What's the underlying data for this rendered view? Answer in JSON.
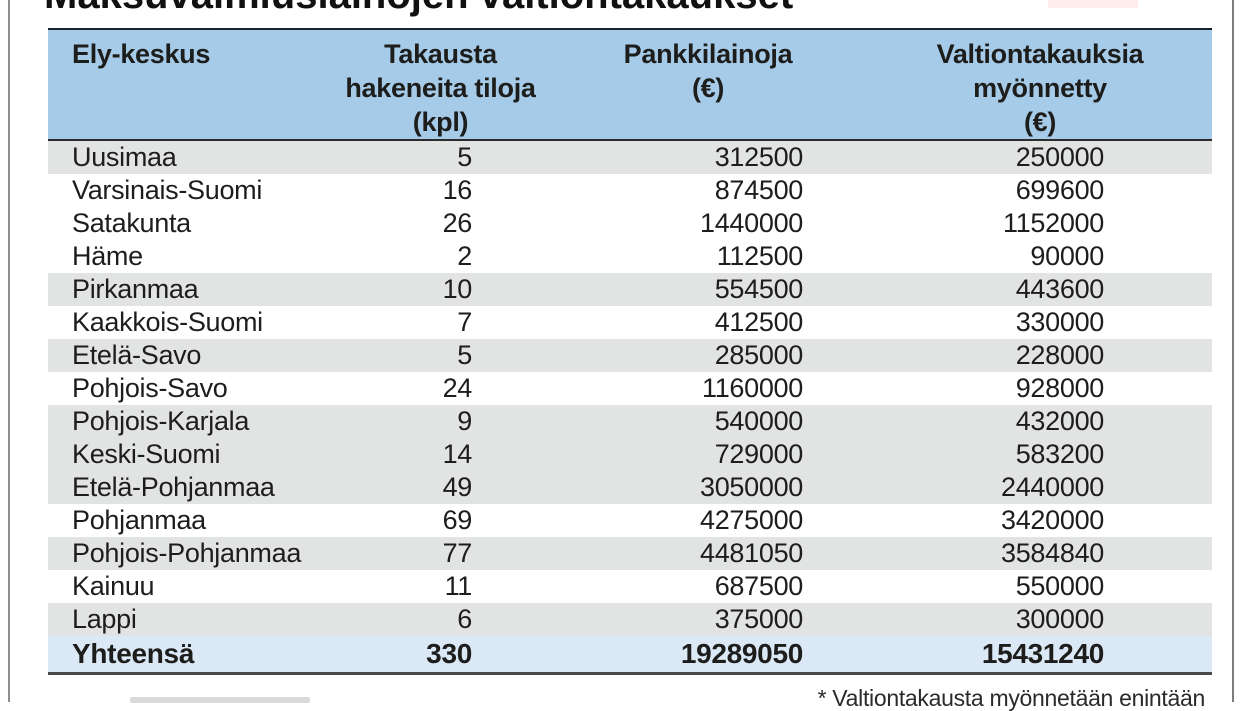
{
  "title": "Maksuvalmiuslainojen valtiontakaukset",
  "footnote": "* Valtiontakausta myönnetään enintään",
  "colors": {
    "header_blue": "#a6cbe9",
    "total_row_blue": "#dbe8f6",
    "stripe_gray": "#e2e3e3",
    "text": "#1d1d1b",
    "header_top_rule": "#16222e",
    "bottom_rule": "#4a4a4a",
    "frame_gray": "#8f8f8f"
  },
  "chart_data": {
    "type": "table",
    "title": "Maksuvalmiuslainojen valtiontakaukset",
    "columns": [
      "Ely-keskus",
      "Takausta\nhakeneita tiloja\n(kpl)",
      "Pankkilainoja\n(€)",
      "Valtiontakauksia\nmyönnetty\n(€)"
    ],
    "rows": [
      {
        "region": "Uusimaa",
        "count": "5",
        "loans": "312500",
        "guarantees": "250000",
        "shaded": true
      },
      {
        "region": "Varsinais-Suomi",
        "count": "16",
        "loans": "874500",
        "guarantees": "699600",
        "shaded": false
      },
      {
        "region": "Satakunta",
        "count": "26",
        "loans": "1440000",
        "guarantees": "1152000",
        "shaded": false
      },
      {
        "region": "Häme",
        "count": "2",
        "loans": "112500",
        "guarantees": "90000",
        "shaded": false
      },
      {
        "region": "Pirkanmaa",
        "count": "10",
        "loans": "554500",
        "guarantees": "443600",
        "shaded": true
      },
      {
        "region": "Kaakkois-Suomi",
        "count": "7",
        "loans": "412500",
        "guarantees": "330000",
        "shaded": false
      },
      {
        "region": "Etelä-Savo",
        "count": "5",
        "loans": "285000",
        "guarantees": "228000",
        "shaded": true
      },
      {
        "region": "Pohjois-Savo",
        "count": "24",
        "loans": "1160000",
        "guarantees": "928000",
        "shaded": false
      },
      {
        "region": "Pohjois-Karjala",
        "count": "9",
        "loans": "540000",
        "guarantees": "432000",
        "shaded": true
      },
      {
        "region": "Keski-Suomi",
        "count": "14",
        "loans": "729000",
        "guarantees": "583200",
        "shaded": true
      },
      {
        "region": "Etelä-Pohjanmaa",
        "count": "49",
        "loans": "3050000",
        "guarantees": "2440000",
        "shaded": true
      },
      {
        "region": "Pohjanmaa",
        "count": "69",
        "loans": "4275000",
        "guarantees": "3420000",
        "shaded": false
      },
      {
        "region": "Pohjois-Pohjanmaa",
        "count": "77",
        "loans": "4481050",
        "guarantees": "3584840",
        "shaded": true
      },
      {
        "region": "Kainuu",
        "count": "11",
        "loans": "687500",
        "guarantees": "550000",
        "shaded": false
      },
      {
        "region": "Lappi",
        "count": "6",
        "loans": "375000",
        "guarantees": "300000",
        "shaded": true
      }
    ],
    "total_row": {
      "region": "Yhteensä",
      "count": "330",
      "loans": "19289050",
      "guarantees": "15431240"
    }
  }
}
